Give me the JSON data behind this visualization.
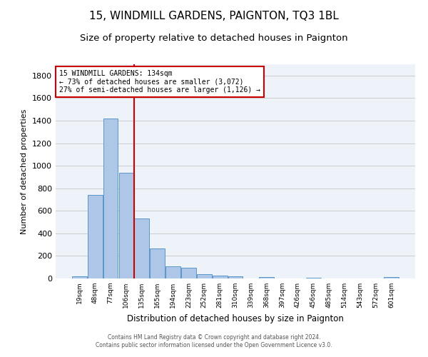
{
  "title1": "15, WINDMILL GARDENS, PAIGNTON, TQ3 1BL",
  "title2": "Size of property relative to detached houses in Paignton",
  "xlabel": "Distribution of detached houses by size in Paignton",
  "ylabel": "Number of detached properties",
  "footer1": "Contains HM Land Registry data © Crown copyright and database right 2024.",
  "footer2": "Contains public sector information licensed under the Open Government Licence v3.0.",
  "bar_labels": [
    "19sqm",
    "48sqm",
    "77sqm",
    "106sqm",
    "135sqm",
    "165sqm",
    "194sqm",
    "223sqm",
    "252sqm",
    "281sqm",
    "310sqm",
    "339sqm",
    "368sqm",
    "397sqm",
    "426sqm",
    "456sqm",
    "485sqm",
    "514sqm",
    "543sqm",
    "572sqm",
    "601sqm"
  ],
  "bar_values": [
    22,
    742,
    1421,
    938,
    533,
    265,
    105,
    92,
    38,
    27,
    17,
    0,
    15,
    0,
    0,
    5,
    0,
    0,
    0,
    0,
    12
  ],
  "bar_color": "#aec6e8",
  "bar_edge_color": "#5a96c8",
  "annotation_label": "15 WINDMILL GARDENS: 134sqm",
  "annotation_text2": "← 73% of detached houses are smaller (3,072)",
  "annotation_text3": "27% of semi-detached houses are larger (1,126) →",
  "annotation_box_color": "#ffffff",
  "annotation_box_edge": "#cc0000",
  "vline_color": "#cc0000",
  "ylim": [
    0,
    1900
  ],
  "yticks": [
    0,
    200,
    400,
    600,
    800,
    1000,
    1200,
    1400,
    1600,
    1800
  ],
  "grid_color": "#cccccc",
  "bg_color": "#eef2f9",
  "title1_fontsize": 11,
  "title2_fontsize": 9.5
}
